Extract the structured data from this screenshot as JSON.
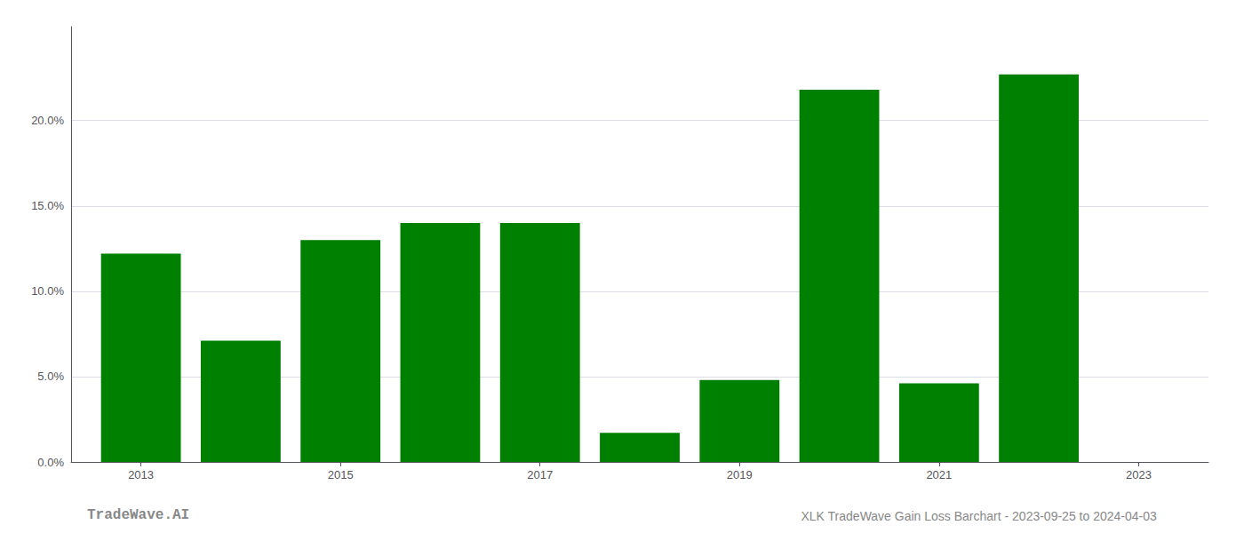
{
  "chart_data": {
    "type": "bar",
    "x": [
      2013,
      2014,
      2015,
      2016,
      2017,
      2018,
      2019,
      2020,
      2021,
      2022
    ],
    "values": [
      0.122,
      0.071,
      0.13,
      0.14,
      0.14,
      0.017,
      0.048,
      0.218,
      0.046,
      0.227
    ],
    "color": "#008000",
    "xlim": [
      2012.3,
      2023.7
    ],
    "xticks": [
      2013,
      2015,
      2017,
      2019,
      2021,
      2023
    ],
    "ylim": [
      0,
      0.255
    ],
    "yticks": [
      {
        "value": 0.0,
        "label": "0.0%"
      },
      {
        "value": 0.05,
        "label": "5.0%"
      },
      {
        "value": 0.1,
        "label": "10.0%"
      },
      {
        "value": 0.15,
        "label": "15.0%"
      },
      {
        "value": 0.2,
        "label": "20.0%"
      }
    ],
    "grid": true,
    "annotations": [
      "TradeWave.AI",
      "XLK TradeWave Gain Loss Barchart - 2023-09-25 to 2024-04-03"
    ]
  }
}
